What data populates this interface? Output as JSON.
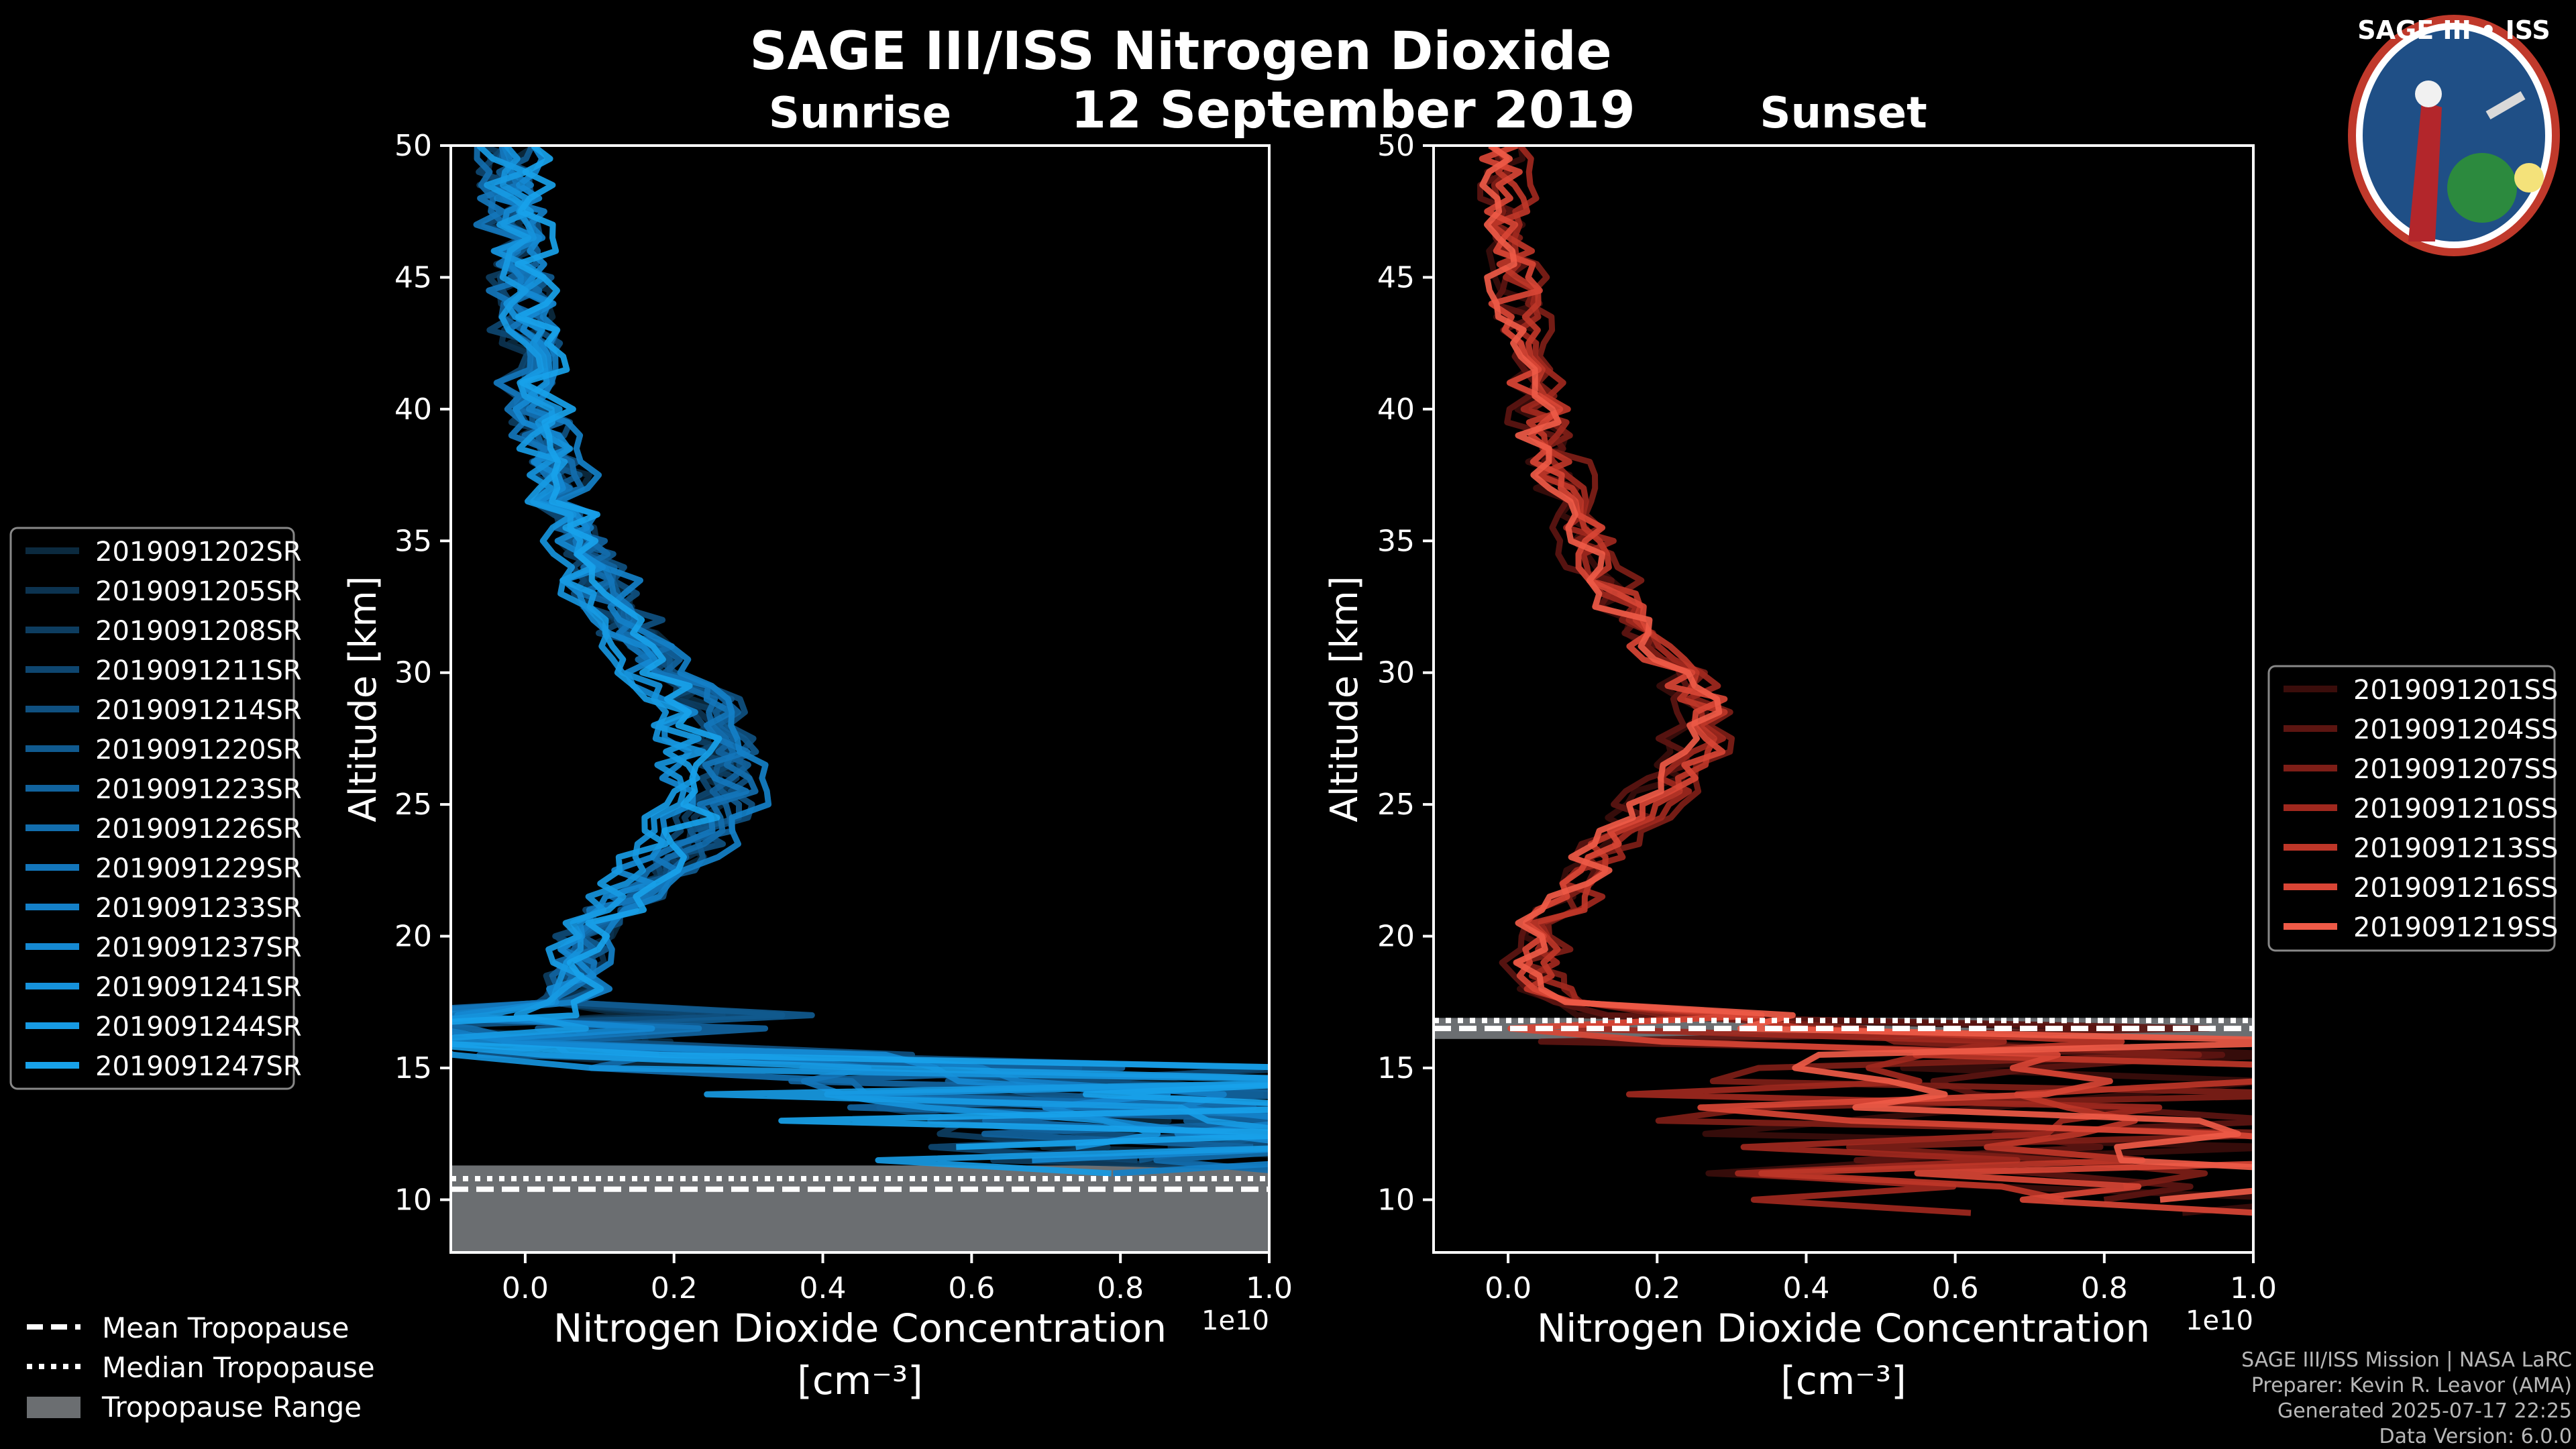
{
  "header": {
    "title": "SAGE III/ISS Nitrogen Dioxide",
    "date": "12 September 2019"
  },
  "logo": {
    "text": "SAGE III • ISS",
    "colors": {
      "ring": "#c0392b",
      "field": "#1f4f86",
      "white": "#ffffff"
    }
  },
  "footer": {
    "lines": [
      "SAGE III/ISS Mission | NASA LaRC",
      "Preparer: Kevin R. Leavor (AMA)",
      "Generated 2025-07-17 22:25",
      "Data Version: 6.0.0"
    ]
  },
  "tropopause_legend": {
    "items": [
      {
        "label": "Mean Tropopause",
        "style": "dashed"
      },
      {
        "label": "Median Tropopause",
        "style": "dotted"
      },
      {
        "label": "Tropopause Range",
        "style": "patch"
      }
    ]
  },
  "chart_data": [
    {
      "type": "line",
      "panel": "sunrise",
      "title": "Sunrise",
      "xlabel": "Nitrogen Dioxide Concentration",
      "xlabel_units": "[cm⁻³]",
      "x_multiplier": "1e10",
      "ylabel": "Altitude [km]",
      "xlim": [
        -0.1,
        1.0
      ],
      "ylim": [
        8,
        50
      ],
      "xticks": [
        0.0,
        0.2,
        0.4,
        0.6,
        0.8,
        1.0
      ],
      "xtick_labels": [
        "0.0",
        "0.2",
        "0.4",
        "0.6",
        "0.8",
        "1.0"
      ],
      "yticks": [
        10,
        15,
        20,
        25,
        30,
        35,
        40,
        45,
        50
      ],
      "grid": false,
      "legend_placement": "outside-left",
      "tropopause": {
        "mean_km": 10.4,
        "median_km": 10.8,
        "range_km": [
          8,
          11.3
        ],
        "range_color": "#6b6e71"
      },
      "profile_knots": {
        "alt_km": [
          12,
          14,
          15.5,
          16.5,
          18,
          20,
          22,
          24,
          25.5,
          27,
          29,
          31,
          33,
          35,
          38,
          41,
          44,
          47,
          50
        ],
        "value_1e10": [
          0.9,
          0.6,
          0.25,
          0.04,
          0.06,
          0.08,
          0.16,
          0.22,
          0.25,
          0.25,
          0.22,
          0.15,
          0.1,
          0.07,
          0.04,
          0.01,
          0.0,
          -0.01,
          -0.02
        ]
      },
      "series": [
        {
          "name": "2019091202SR",
          "color": "#0b2a3f"
        },
        {
          "name": "2019091205SR",
          "color": "#0c3350"
        },
        {
          "name": "2019091208SR",
          "color": "#0d3d60"
        },
        {
          "name": "2019091211SR",
          "color": "#0e4670"
        },
        {
          "name": "2019091214SR",
          "color": "#0f5080"
        },
        {
          "name": "2019091220SR",
          "color": "#105a8f"
        },
        {
          "name": "2019091223SR",
          "color": "#11639e"
        },
        {
          "name": "2019091226SR",
          "color": "#126dad"
        },
        {
          "name": "2019091229SR",
          "color": "#1376bb"
        },
        {
          "name": "2019091233SR",
          "color": "#1480c8"
        },
        {
          "name": "2019091237SR",
          "color": "#1589d2"
        },
        {
          "name": "2019091241SR",
          "color": "#1692db"
        },
        {
          "name": "2019091244SR",
          "color": "#179ae3"
        },
        {
          "name": "2019091247SR",
          "color": "#18a2ea"
        }
      ]
    },
    {
      "type": "line",
      "panel": "sunset",
      "title": "Sunset",
      "xlabel": "Nitrogen Dioxide Concentration",
      "xlabel_units": "[cm⁻³]",
      "x_multiplier": "1e10",
      "ylabel": "Altitude [km]",
      "xlim": [
        -0.1,
        1.0
      ],
      "ylim": [
        8,
        50
      ],
      "xticks": [
        0.0,
        0.2,
        0.4,
        0.6,
        0.8,
        1.0
      ],
      "xtick_labels": [
        "0.0",
        "0.2",
        "0.4",
        "0.6",
        "0.8",
        "1.0"
      ],
      "yticks": [
        10,
        15,
        20,
        25,
        30,
        35,
        40,
        45,
        50
      ],
      "grid": false,
      "legend_placement": "outside-right",
      "tropopause": {
        "mean_km": 16.5,
        "median_km": 16.8,
        "range_km": [
          16.1,
          16.9
        ],
        "range_color": "#6b6e71"
      },
      "profile_knots": {
        "alt_km": [
          10,
          13,
          15.5,
          17.5,
          19,
          21,
          23,
          25,
          27,
          29,
          31,
          33,
          35,
          38,
          41,
          44,
          47,
          50
        ],
        "value_1e10": [
          0.75,
          0.6,
          0.45,
          0.08,
          0.03,
          0.08,
          0.14,
          0.22,
          0.29,
          0.29,
          0.22,
          0.16,
          0.12,
          0.07,
          0.04,
          0.02,
          0.0,
          -0.01
        ]
      },
      "series": [
        {
          "name": "2019091201SS",
          "color": "#3a0d0b"
        },
        {
          "name": "2019091204SS",
          "color": "#5c1511"
        },
        {
          "name": "2019091207SS",
          "color": "#7e1e17"
        },
        {
          "name": "2019091210SS",
          "color": "#a0281e"
        },
        {
          "name": "2019091213SS",
          "color": "#be3628"
        },
        {
          "name": "2019091216SS",
          "color": "#d84535"
        },
        {
          "name": "2019091219SS",
          "color": "#ee5a47"
        }
      ]
    }
  ]
}
